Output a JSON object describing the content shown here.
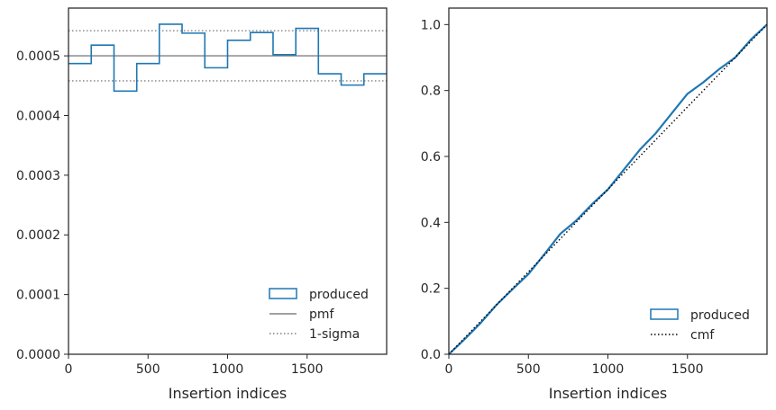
{
  "chart_data": [
    {
      "type": "step",
      "xlabel": "Insertion indices",
      "ylabel": "",
      "title": "",
      "xlim": [
        0,
        2000
      ],
      "ylim": [
        0,
        0.00058
      ],
      "xticks": [
        {
          "value": 0,
          "label": "0"
        },
        {
          "value": 500,
          "label": "500"
        },
        {
          "value": 1000,
          "label": "1000"
        },
        {
          "value": 1500,
          "label": "1500"
        }
      ],
      "yticks": [
        {
          "value": 0,
          "label": "0.0000"
        },
        {
          "value": 0.0001,
          "label": "0.0001"
        },
        {
          "value": 0.0002,
          "label": "0.0002"
        },
        {
          "value": 0.0003,
          "label": "0.0003"
        },
        {
          "value": 0.0004,
          "label": "0.0004"
        },
        {
          "value": 0.0005,
          "label": "0.0005"
        }
      ],
      "bin_edges": [
        0,
        143,
        286,
        429,
        571,
        714,
        857,
        1000,
        1143,
        1286,
        1429,
        1571,
        1714,
        1857,
        2000
      ],
      "series": [
        {
          "name": "produced",
          "kind": "step-histogram",
          "color": "#1f77b4",
          "values": [
            0.000487,
            0.000518,
            0.000441,
            0.000487,
            0.000553,
            0.000538,
            0.00048,
            0.000526,
            0.000539,
            0.000502,
            0.000546,
            0.00047,
            0.000451,
            0.00047
          ]
        },
        {
          "name": "pmf",
          "kind": "hline",
          "color": "#808080",
          "style": "solid",
          "value": 0.0005
        },
        {
          "name": "1-sigma",
          "kind": "hline-pair",
          "color": "#808080",
          "style": "dotted",
          "values": [
            0.000458,
            0.000542
          ]
        }
      ],
      "legend": {
        "placement": "lower-right",
        "entries": [
          "produced",
          "pmf",
          "1-sigma"
        ]
      }
    },
    {
      "type": "line",
      "xlabel": "Insertion indices",
      "ylabel": "",
      "title": "",
      "xlim": [
        0,
        2000
      ],
      "ylim": [
        0,
        1.05
      ],
      "xticks": [
        {
          "value": 0,
          "label": "0"
        },
        {
          "value": 500,
          "label": "500"
        },
        {
          "value": 1000,
          "label": "1000"
        },
        {
          "value": 1500,
          "label": "1500"
        }
      ],
      "yticks": [
        {
          "value": 0,
          "label": "0.0"
        },
        {
          "value": 0.2,
          "label": "0.2"
        },
        {
          "value": 0.4,
          "label": "0.4"
        },
        {
          "value": 0.6,
          "label": "0.6"
        },
        {
          "value": 0.8,
          "label": "0.8"
        },
        {
          "value": 1.0,
          "label": "1.0"
        }
      ],
      "series": [
        {
          "name": "produced",
          "kind": "empirical-cdf",
          "color": "#1f77b4",
          "x": [
            0,
            100,
            200,
            300,
            400,
            500,
            600,
            700,
            800,
            900,
            1000,
            1100,
            1200,
            1300,
            1400,
            1500,
            1600,
            1700,
            1800,
            1900,
            2000
          ],
          "y": [
            0,
            0.046,
            0.095,
            0.15,
            0.197,
            0.243,
            0.303,
            0.365,
            0.405,
            0.455,
            0.5,
            0.56,
            0.62,
            0.67,
            0.73,
            0.79,
            0.825,
            0.865,
            0.9,
            0.955,
            1.0
          ]
        },
        {
          "name": "cmf",
          "kind": "line",
          "color": "#000000",
          "style": "dotted",
          "x": [
            0,
            2000
          ],
          "y": [
            0,
            1.0
          ]
        }
      ],
      "legend": {
        "placement": "lower-right",
        "entries": [
          "produced",
          "cmf"
        ]
      }
    }
  ]
}
